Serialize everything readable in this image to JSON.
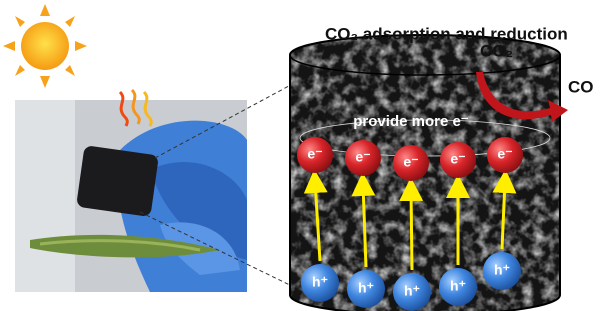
{
  "title": "CO₂ adsorption and reduction",
  "gas_in": "CO₂",
  "gas_out": "CO",
  "cylinder_label": "provide more e⁻",
  "electrons": [
    "e⁻",
    "e⁻",
    "e⁻",
    "e⁻",
    "e⁻"
  ],
  "holes": [
    "h⁺",
    "h⁺",
    "h⁺",
    "h⁺",
    "h⁺"
  ]
}
